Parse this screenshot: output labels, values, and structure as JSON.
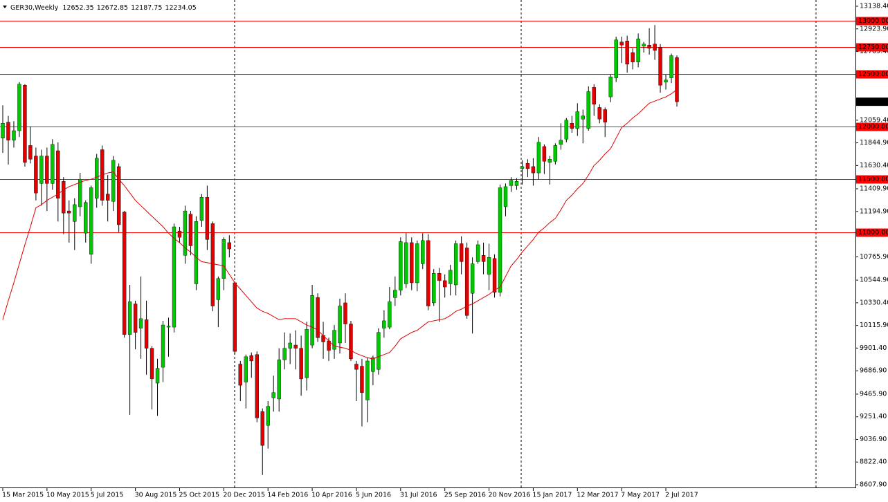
{
  "chart_data": {
    "type": "candlestick",
    "title": "GER30,Weekly",
    "categories": [
      "15 Mar 2015",
      null,
      null,
      null,
      null,
      null,
      null,
      null,
      "10 May 2015",
      null,
      null,
      null,
      null,
      null,
      null,
      null,
      "5 Jul 2015",
      null,
      null,
      null,
      null,
      null,
      null,
      null,
      "30 Aug 2015",
      null,
      null,
      null,
      null,
      null,
      null,
      null,
      "25 Oct 2015",
      null,
      null,
      null,
      null,
      null,
      null,
      null,
      "20 Dec 2015",
      null,
      null,
      null,
      null,
      null,
      null,
      null,
      "14 Feb 2016",
      null,
      null,
      null,
      null,
      null,
      null,
      null,
      "10 Apr 2016",
      null,
      null,
      null,
      null,
      null,
      null,
      null,
      "5 Jun 2016",
      null,
      null,
      null,
      null,
      null,
      null,
      null,
      "31 Jul 2016",
      null,
      null,
      null,
      null,
      null,
      null,
      null,
      "25 Sep 2016",
      null,
      null,
      null,
      null,
      null,
      null,
      null,
      "20 Nov 2016",
      null,
      null,
      null,
      null,
      null,
      null,
      null,
      "15 Jan 2017",
      null,
      null,
      null,
      null,
      null,
      null,
      null,
      "12 Mar 2017",
      null,
      null,
      null,
      null,
      null,
      null,
      null,
      "7 May 2017",
      null,
      null,
      null,
      null,
      null,
      null,
      null,
      "2 Jul 2017",
      null,
      null
    ],
    "open": [
      11890,
      12040,
      11870,
      11960,
      12390,
      11820,
      11720,
      11460,
      11720,
      11460,
      11770,
      11480,
      11200,
      11100,
      11240,
      10990,
      10790,
      11320,
      11780,
      11360,
      11290,
      11620,
      11190,
      10030,
      10320,
      10090,
      10170,
      9900,
      9570,
      9720,
      10100,
      10100,
      11010,
      10780,
      11170,
      10510,
      11110,
      11330,
      11080,
      10360,
      10560,
      10900,
      10520,
      9750,
      9580,
      9830,
      9840,
      9300,
      9170,
      9430,
      9420,
      9790,
      9900,
      9930,
      9900,
      9620,
      9930,
      10380,
      10020,
      9970,
      9890,
      9950,
      10330,
      10130,
      9750,
      9730,
      9410,
      9680,
      9700,
      10090,
      10100,
      10380,
      10450,
      10510,
      10900,
      10520,
      10700,
      10920,
      10330,
      10610,
      10540,
      10510,
      10500,
      10890,
      10850,
      10420,
      10720,
      10780,
      10600,
      10750,
      10430,
      11240,
      11440,
      11440,
      11600,
      11650,
      11620,
      11560,
      11810,
      11660,
      11670,
      11830,
      11880,
      12030,
      11980,
      12070,
      11980,
      12370,
      12180,
      12160,
      12280,
      12460,
      12800,
      12810,
      12700,
      12610,
      12760,
      12770,
      12780,
      12750,
      12420,
      12460,
      12652.35
    ],
    "high": [
      12200,
      12100,
      12050,
      12420,
      12400,
      12000,
      11800,
      11780,
      11800,
      11880,
      11850,
      11520,
      11300,
      11320,
      11560,
      11300,
      11440,
      11740,
      11820,
      11540,
      11720,
      11650,
      11200,
      10500,
      10350,
      10580,
      10350,
      9920,
      9800,
      10160,
      10190,
      11080,
      11050,
      11250,
      11200,
      11150,
      11360,
      11440,
      11100,
      10580,
      10950,
      10970,
      10530,
      9780,
      9840,
      9860,
      9870,
      9330,
      9400,
      9640,
      9900,
      10050,
      10040,
      10070,
      10020,
      10150,
      10500,
      10420,
      10150,
      10000,
      10120,
      10370,
      10420,
      10160,
      9780,
      9800,
      9810,
      9830,
      10090,
      10260,
      10480,
      10580,
      10950,
      10990,
      10950,
      10920,
      10990,
      10980,
      10650,
      10660,
      10600,
      10690,
      10920,
      10960,
      10900,
      10760,
      10920,
      10900,
      10890,
      10790,
      11450,
      11460,
      11520,
      11510,
      11680,
      11690,
      11700,
      11900,
      11830,
      11720,
      11840,
      12030,
      12080,
      12100,
      12220,
      12160,
      12380,
      12400,
      12210,
      12180,
      12490,
      12850,
      12850,
      12860,
      12740,
      12880,
      12800,
      12930,
      12960,
      12780,
      12490,
      12690,
      12672.85
    ],
    "low": [
      11750,
      11640,
      11800,
      11900,
      11620,
      11650,
      11300,
      11250,
      11200,
      11400,
      11100,
      10980,
      10900,
      10830,
      11150,
      10900,
      10700,
      11230,
      11250,
      11100,
      11200,
      11000,
      10000,
      9270,
      9890,
      9800,
      9650,
      9320,
      9260,
      9580,
      9820,
      10050,
      10900,
      10700,
      10780,
      10450,
      11050,
      10830,
      10250,
      10100,
      10450,
      10760,
      9840,
      9400,
      9330,
      9620,
      9200,
      8700,
      8950,
      9300,
      9300,
      9700,
      9750,
      9700,
      9450,
      9500,
      9900,
      9960,
      9800,
      9780,
      9800,
      9850,
      9950,
      9780,
      9400,
      9160,
      9200,
      9550,
      9650,
      10000,
      10080,
      10300,
      10400,
      10470,
      10450,
      10440,
      10650,
      10260,
      10300,
      10150,
      10380,
      10400,
      10400,
      10600,
      10180,
      10040,
      10700,
      10600,
      10450,
      10380,
      10390,
      11150,
      11380,
      11400,
      11450,
      11520,
      11440,
      11500,
      11550,
      11450,
      11640,
      11780,
      11850,
      11940,
      11910,
      11840,
      11960,
      12100,
      12030,
      11900,
      12230,
      12420,
      12600,
      12510,
      12540,
      12560,
      12700,
      12680,
      12630,
      12320,
      12350,
      12410,
      12187.75
    ],
    "close": [
      12030,
      11870,
      11960,
      12400,
      11660,
      11690,
      11370,
      11720,
      11460,
      11830,
      11320,
      11180,
      11180,
      11260,
      11500,
      11280,
      11420,
      11700,
      11300,
      11300,
      11680,
      11070,
      10030,
      10340,
      10050,
      10180,
      9900,
      9610,
      9710,
      10120,
      10110,
      11050,
      10950,
      11200,
      10870,
      11100,
      11330,
      10930,
      10300,
      10560,
      10930,
      10840,
      9870,
      9550,
      9820,
      9780,
      9240,
      8980,
      9350,
      9480,
      9790,
      9900,
      9950,
      9900,
      9610,
      10080,
      10400,
      10000,
      9960,
      9880,
      10070,
      10300,
      10130,
      9800,
      9700,
      9480,
      9780,
      9810,
      10050,
      10160,
      10340,
      10450,
      10910,
      10900,
      10520,
      10890,
      10920,
      10300,
      10610,
      10540,
      10480,
      10640,
      10890,
      10720,
      10210,
      10700,
      10880,
      10720,
      10760,
      10430,
      11420,
      11430,
      11490,
      11480,
      11620,
      11600,
      11560,
      11850,
      11670,
      11690,
      11820,
      11870,
      12060,
      11980,
      12140,
      12100,
      12330,
      12210,
      12070,
      12040,
      12470,
      12820,
      12770,
      12590,
      12610,
      12830,
      12780,
      12740,
      12720,
      12390,
      12440,
      12670,
      12234.05
    ],
    "up_color": "#00c800",
    "down_color": "#e00000",
    "moving_average": {
      "color": "#e00000",
      "values": [
        10170,
        10350,
        10520,
        10700,
        10880,
        11050,
        11230,
        11260,
        11300,
        11330,
        11360,
        11400,
        11430,
        11450,
        11470,
        11490,
        11500,
        11520,
        11540,
        11560,
        11570,
        11500,
        11440,
        11370,
        11300,
        11250,
        11200,
        11150,
        11100,
        11050,
        10990,
        10940,
        10900,
        10850,
        10810,
        10760,
        10720,
        10710,
        10700,
        10690,
        10680,
        10600,
        10520,
        10460,
        10400,
        10340,
        10280,
        10250,
        10230,
        10200,
        10170,
        10180,
        10180,
        10180,
        10150,
        10120,
        10100,
        10070,
        10020,
        9970,
        9920,
        9910,
        9900,
        9880,
        9850,
        9830,
        9810,
        9800,
        9820,
        9840,
        9860,
        9920,
        9990,
        10020,
        10050,
        10070,
        10110,
        10150,
        10160,
        10170,
        10180,
        10210,
        10250,
        10270,
        10300,
        10320,
        10350,
        10380,
        10410,
        10450,
        10480,
        10580,
        10680,
        10740,
        10810,
        10870,
        10930,
        11000,
        11040,
        11090,
        11130,
        11210,
        11300,
        11350,
        11410,
        11460,
        11540,
        11630,
        11680,
        11740,
        11790,
        11890,
        11990,
        12030,
        12080,
        12120,
        12170,
        12220,
        12240,
        12260,
        12280,
        12310,
        12350
      ]
    },
    "levels": {
      "color": "#ff0000",
      "values": [
        {
          "value": 13000,
          "label": "13000.00"
        },
        {
          "value": 12750,
          "label": "12750.00"
        },
        {
          "value": 12500,
          "label": "12500.00"
        },
        {
          "value": 12000,
          "label": "12000.00"
        },
        {
          "value": 11500,
          "label": "11500.00"
        },
        {
          "value": 11000,
          "label": "11000.00"
        }
      ]
    },
    "ylim": [
      8607.9,
      13138.4
    ],
    "yticks": [
      {
        "value": 13138.4,
        "label": "13138.40"
      },
      {
        "value": 12923.9,
        "label": "12923.90"
      },
      {
        "value": 12709.4,
        "label": "12709.40"
      },
      {
        "value": 12059.4,
        "label": "12059.40"
      },
      {
        "value": 11844.9,
        "label": "11844.90"
      },
      {
        "value": 11630.4,
        "label": "11630.40"
      },
      {
        "value": 11409.9,
        "label": "11409.90"
      },
      {
        "value": 11194.9,
        "label": "11194.90"
      },
      {
        "value": 10765.9,
        "label": "10765.90"
      },
      {
        "value": 10544.9,
        "label": "10544.90"
      },
      {
        "value": 10330.4,
        "label": "10330.40"
      },
      {
        "value": 10115.9,
        "label": "10115.90"
      },
      {
        "value": 9901.4,
        "label": "9901.40"
      },
      {
        "value": 9686.9,
        "label": "9686.90"
      },
      {
        "value": 9465.9,
        "label": "9465.90"
      },
      {
        "value": 9251.4,
        "label": "9251.40"
      },
      {
        "value": 9036.9,
        "label": "9036.90"
      },
      {
        "value": 8822.4,
        "label": "8822.40"
      },
      {
        "value": 8607.9,
        "label": "8607.90"
      }
    ]
  }
}
